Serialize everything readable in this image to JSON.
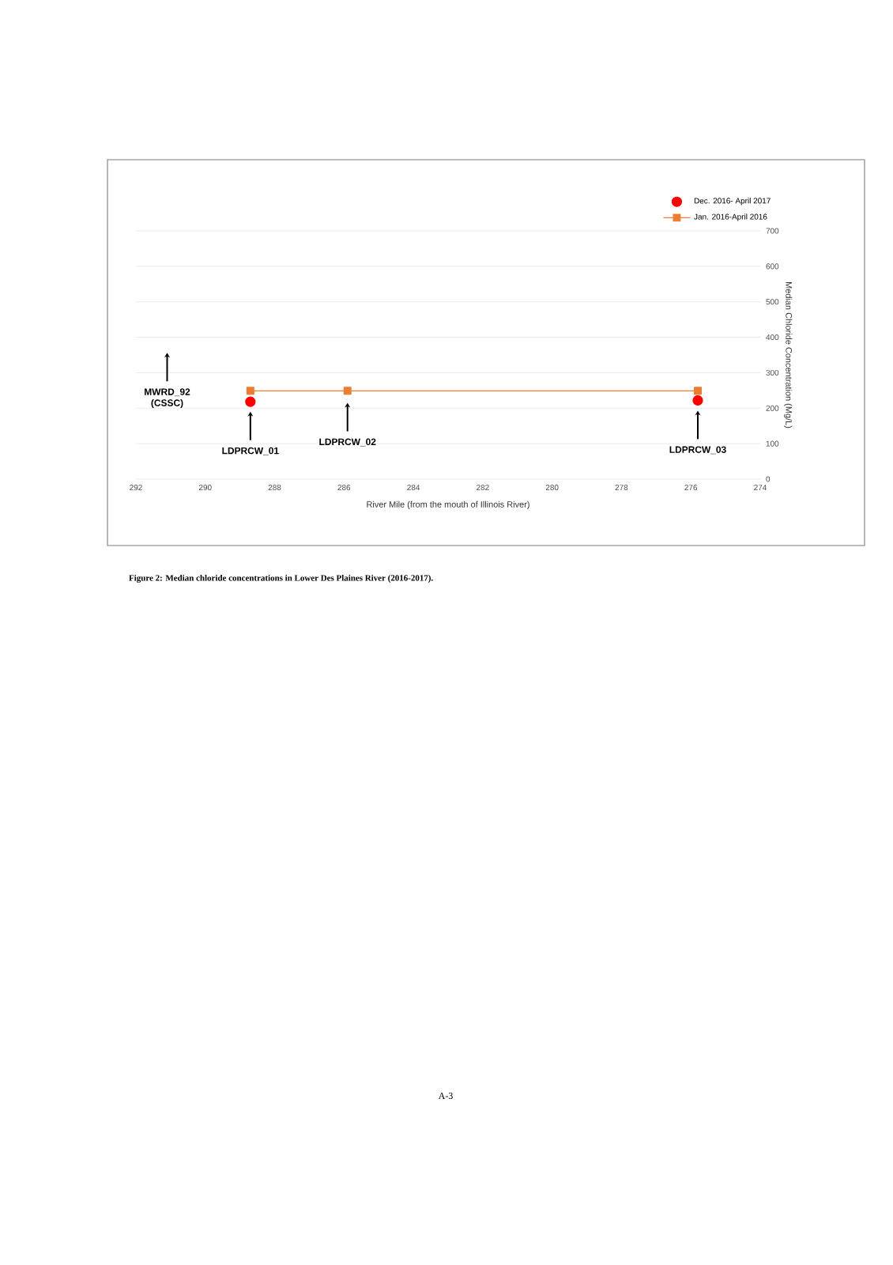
{
  "chart_data": {
    "type": "line",
    "xlabel": "River Mile (from the mouth of Illinois River)",
    "ylabel": "Median Chloride Concentration (Mg/L)",
    "x": [
      288.7,
      285.9,
      275.8
    ],
    "series": [
      {
        "name": "Dec. 2016- April 2017",
        "type": "scatter",
        "color": "#ff0000",
        "marker": "circle",
        "values": [
          218,
          null,
          222
        ]
      },
      {
        "name": "Jan. 2016-April 2016",
        "color": "#ed7d31",
        "marker": "square",
        "values": [
          249,
          249,
          249
        ]
      }
    ],
    "xlim": [
      292,
      274
    ],
    "xticks": [
      292,
      290,
      288,
      286,
      284,
      282,
      280,
      278,
      276,
      274
    ],
    "ylim": [
      0,
      700
    ],
    "yticks": [
      0,
      100,
      200,
      300,
      400,
      500,
      600,
      700
    ],
    "grid": "y",
    "legend": "top right",
    "annotations": [
      {
        "text": "MWRD_92 (CSSC)",
        "x": 291.1,
        "y": 356
      },
      {
        "text": "LDPRCW_01",
        "x": 288.7,
        "y": 190
      },
      {
        "text": "LDPRCW_02",
        "x": 285.9,
        "y": 215
      },
      {
        "text": "LDPRCW_03",
        "x": 275.8,
        "y": 193
      },
      "Figure 2: Median chloride concentrations in Lower Des Plaines River (2016-2017).",
      "A-3"
    ]
  }
}
